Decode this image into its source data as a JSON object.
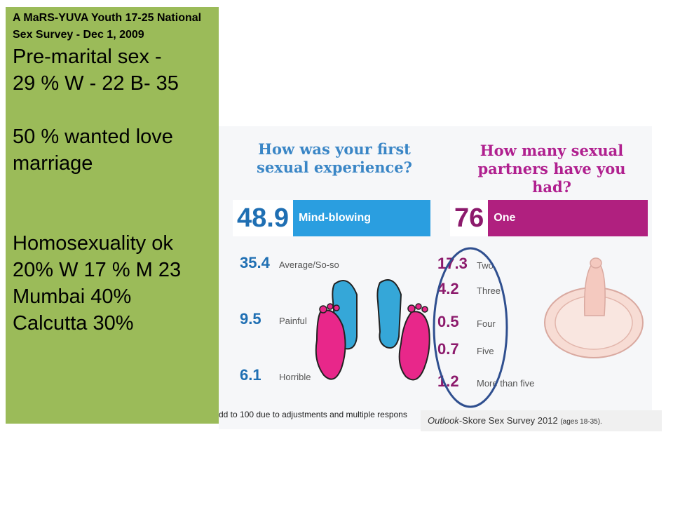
{
  "panel": {
    "survey_title": "A MaRS-YUVA Youth 17-25 National Sex Survey - Dec 1, 2009",
    "lines": [
      "Pre-marital sex  -",
      "29 % W - 22 B- 35",
      "50 % wanted love",
      "marriage",
      "Homosexuality ok",
      "20% W 17 % M 23",
      "Mumbai 40%",
      "Calcutta 30%"
    ]
  },
  "infographic": {
    "left": {
      "title": "How was your first sexual experience?",
      "top_value": "48.9",
      "top_label": "Mind-blowing",
      "rows": [
        {
          "value": "35.4",
          "label": "Average/So-so"
        },
        {
          "value": "9.5",
          "label": "Painful"
        },
        {
          "value": "6.1",
          "label": "Horrible"
        }
      ]
    },
    "right": {
      "title": "How many sexual partners have you had?",
      "top_value": "76",
      "top_label": "One",
      "rows": [
        {
          "value": "17.3",
          "label": "Two"
        },
        {
          "value": "4.2",
          "label": "Three"
        },
        {
          "value": "0.5",
          "label": "Four"
        },
        {
          "value": "0.7",
          "label": "Five"
        },
        {
          "value": "1.2",
          "label": "More than five"
        }
      ]
    },
    "footnote": "dd to 100 due to adjustments and multiple respons"
  },
  "source": {
    "name": "Outlook",
    "rest": "-Skore Sex Survey 2012",
    "ages": "(ages 18-35)."
  },
  "colors": {
    "panel_green": "#9bbb59",
    "left_blue": "#2a9ee0",
    "right_magenta": "#b0207f",
    "ellipse_navy": "#2f4f8f"
  }
}
